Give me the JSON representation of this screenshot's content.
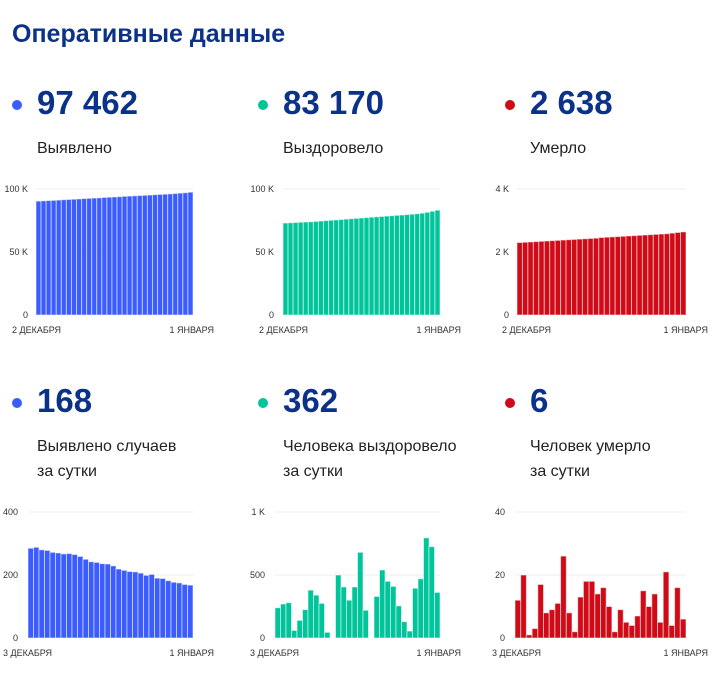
{
  "title": "Оперативные данные",
  "colors": {
    "blue": "#3b5cff",
    "green": "#00c49a",
    "red": "#d00a16",
    "navy": "#0b3289"
  },
  "stats": [
    {
      "value": "97 462",
      "label": "Выявлено",
      "color": "#3b5cff"
    },
    {
      "value": "83 170",
      "label": "Выздоровело",
      "color": "#00c49a"
    },
    {
      "value": "2 638",
      "label": "Умерло",
      "color": "#d00a16"
    },
    {
      "value": "168",
      "label": "Выявлено случаев",
      "label2": "за сутки",
      "color": "#3b5cff"
    },
    {
      "value": "362",
      "label": "Человека выздоровело",
      "label2": "за сутки",
      "color": "#00c49a"
    },
    {
      "value": "6",
      "label": "Человек умерло",
      "label2": "за сутки",
      "color": "#d00a16"
    }
  ],
  "chart_data": [
    {
      "type": "bar",
      "title": "Выявлено",
      "ylim": [
        0,
        100000
      ],
      "yticks": [
        0,
        50000,
        100000
      ],
      "ytick_labels": [
        "0",
        "50 K",
        "100 K"
      ],
      "xtick_labels": [
        "2 ДЕКАБРЯ",
        "1 ЯНВАРЯ"
      ],
      "color": "#3b5cff",
      "values": [
        90400,
        90600,
        90800,
        91000,
        91200,
        91500,
        91700,
        91900,
        92100,
        92400,
        92600,
        92800,
        93000,
        93300,
        93500,
        93700,
        93900,
        94200,
        94400,
        94600,
        94800,
        95000,
        95200,
        95500,
        95700,
        95900,
        96100,
        96400,
        96700,
        97000,
        97462
      ]
    },
    {
      "type": "bar",
      "title": "Выздоровело",
      "ylim": [
        0,
        100000
      ],
      "yticks": [
        0,
        50000,
        100000
      ],
      "ytick_labels": [
        "0",
        "50 K",
        "100 K"
      ],
      "xtick_labels": [
        "2 ДЕКАБРЯ",
        "1 ЯНВАРЯ"
      ],
      "color": "#00c49a",
      "values": [
        73000,
        73200,
        73400,
        73600,
        73800,
        74000,
        74300,
        74600,
        74900,
        75200,
        75500,
        75800,
        76100,
        76400,
        76700,
        77000,
        77300,
        77600,
        77900,
        78200,
        78500,
        78800,
        79100,
        79400,
        79700,
        80000,
        80400,
        80800,
        81500,
        82300,
        83170
      ]
    },
    {
      "type": "bar",
      "title": "Умерло",
      "ylim": [
        0,
        4000
      ],
      "yticks": [
        0,
        2000,
        4000
      ],
      "ytick_labels": [
        "0",
        "2 K",
        "4 K"
      ],
      "xtick_labels": [
        "2 ДЕКАБРЯ",
        "1 ЯНВАРЯ"
      ],
      "color": "#d00a16",
      "values": [
        2300,
        2310,
        2320,
        2330,
        2340,
        2350,
        2360,
        2370,
        2380,
        2390,
        2400,
        2410,
        2420,
        2430,
        2440,
        2460,
        2470,
        2480,
        2490,
        2500,
        2510,
        2520,
        2530,
        2540,
        2550,
        2560,
        2570,
        2580,
        2600,
        2620,
        2638
      ]
    },
    {
      "type": "bar",
      "title": "Выявлено случаев за сутки",
      "ylim": [
        0,
        400
      ],
      "yticks": [
        0,
        200,
        400
      ],
      "ytick_labels": [
        "0",
        "200",
        "400"
      ],
      "xtick_labels": [
        "3 ДЕКАБРЯ",
        "1 ЯНВАРЯ"
      ],
      "color": "#3b5cff",
      "values": [
        285,
        288,
        280,
        278,
        272,
        270,
        267,
        268,
        265,
        259,
        250,
        242,
        240,
        236,
        235,
        229,
        219,
        215,
        211,
        210,
        206,
        199,
        202,
        190,
        189,
        182,
        177,
        175,
        170,
        168
      ]
    },
    {
      "type": "bar",
      "title": "Человека выздоровело за сутки",
      "ylim": [
        0,
        1000
      ],
      "yticks": [
        0,
        500,
        1000
      ],
      "ytick_labels": [
        "0",
        "500",
        "1 K"
      ],
      "xtick_labels": [
        "3 ДЕКАБРЯ",
        "1 ЯНВАРЯ"
      ],
      "color": "#00c49a",
      "values": [
        240,
        270,
        280,
        60,
        140,
        225,
        380,
        340,
        275,
        45,
        0,
        500,
        405,
        300,
        405,
        680,
        220,
        0,
        330,
        540,
        450,
        410,
        255,
        130,
        55,
        395,
        470,
        795,
        725,
        362
      ]
    },
    {
      "type": "bar",
      "title": "Человек умерло за сутки",
      "ylim": [
        0,
        40
      ],
      "yticks": [
        0,
        20,
        40
      ],
      "ytick_labels": [
        "0",
        "20",
        "40"
      ],
      "xtick_labels": [
        "3 ДЕКАБРЯ",
        "1 ЯНВАРЯ"
      ],
      "color": "#d00a16",
      "values": [
        12,
        20,
        1,
        3,
        17,
        8,
        9,
        11,
        26,
        8,
        2,
        13,
        18,
        18,
        14,
        16,
        10,
        2,
        9,
        5,
        4,
        7,
        15,
        10,
        14,
        5,
        21,
        4,
        16,
        6
      ]
    }
  ]
}
